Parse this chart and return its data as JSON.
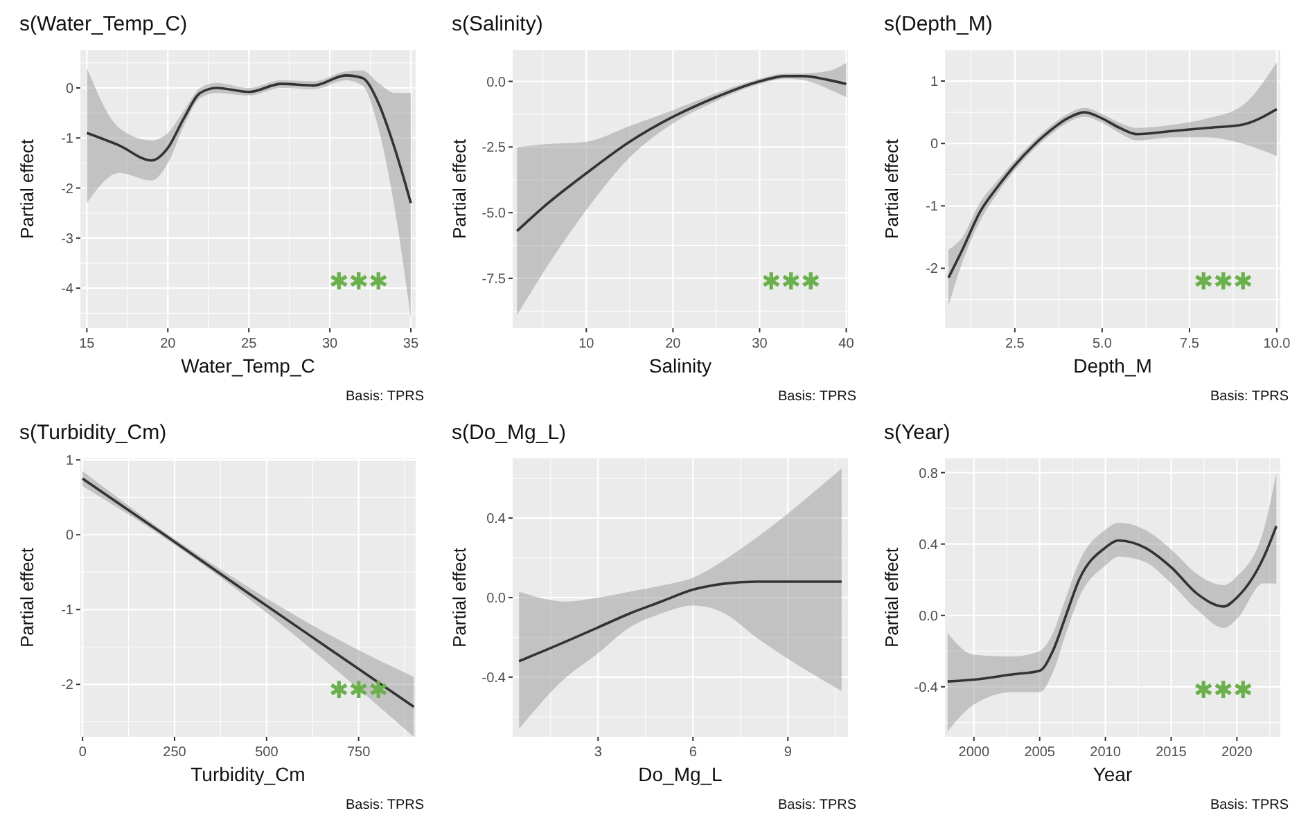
{
  "chart_data": [
    {
      "type": "line",
      "title": "s(Water_Temp_C)",
      "xlabel": "Water_Temp_C",
      "ylabel": "Partial effect",
      "annotations": [
        "✱✱✱",
        "Basis: TPRS"
      ],
      "grid": true,
      "xlim": [
        14.6,
        35.3
      ],
      "ylim": [
        -4.8,
        0.76
      ],
      "xticks": [
        15,
        20,
        25,
        30,
        35
      ],
      "yticks": [
        -4,
        -3,
        -2,
        -1,
        0
      ],
      "x": [
        15,
        17,
        19,
        20,
        21,
        22,
        23,
        25,
        27,
        29,
        31,
        32,
        33,
        34,
        35
      ],
      "series": [
        {
          "color": "#333333",
          "values": [
            -0.9,
            -1.15,
            -1.45,
            -1.2,
            -0.6,
            -0.1,
            0.0,
            -0.08,
            0.08,
            0.05,
            0.25,
            0.2,
            -0.3,
            -1.2,
            -2.3
          ],
          "lower": [
            -2.3,
            -1.7,
            -1.85,
            -1.5,
            -0.75,
            -0.2,
            -0.1,
            -0.15,
            0.0,
            -0.03,
            0.15,
            0.05,
            -0.8,
            -2.4,
            -4.6
          ],
          "upper": [
            0.4,
            -0.8,
            -1.05,
            -0.9,
            -0.45,
            0.0,
            0.1,
            0.0,
            0.15,
            0.13,
            0.33,
            0.35,
            0.1,
            -0.1,
            -0.1
          ]
        }
      ]
    },
    {
      "type": "line",
      "title": "s(Salinity)",
      "xlabel": "Salinity",
      "ylabel": "Partial effect",
      "annotations": [
        "✱✱✱",
        "Basis: TPRS"
      ],
      "grid": true,
      "xlim": [
        1.5,
        40.2
      ],
      "ylim": [
        -9.4,
        1.2
      ],
      "xticks": [
        10,
        20,
        30,
        40
      ],
      "yticks": [
        {
          "value": -7.5,
          "label": "-7.5"
        },
        {
          "value": -5,
          "label": "-5.0"
        },
        {
          "value": -2.5,
          "label": "-2.5"
        },
        {
          "value": 0,
          "label": "0.0"
        }
      ],
      "x": [
        2,
        5,
        10,
        15,
        20,
        25,
        30,
        33,
        35,
        38,
        40
      ],
      "series": [
        {
          "color": "#333333",
          "values": [
            -5.7,
            -4.8,
            -3.5,
            -2.3,
            -1.35,
            -0.6,
            0.0,
            0.2,
            0.2,
            0.05,
            -0.1
          ],
          "lower": [
            -8.9,
            -7.3,
            -4.9,
            -2.9,
            -1.6,
            -0.75,
            -0.1,
            0.1,
            0.05,
            -0.3,
            -0.6
          ],
          "upper": [
            -2.5,
            -2.4,
            -2.3,
            -1.7,
            -1.1,
            -0.45,
            0.1,
            0.3,
            0.3,
            0.4,
            0.7
          ]
        }
      ]
    },
    {
      "type": "line",
      "title": "s(Depth_M)",
      "xlabel": "Depth_M",
      "ylabel": "Partial effect",
      "annotations": [
        "✱✱✱",
        "Basis: TPRS"
      ],
      "grid": true,
      "xlim": [
        0.5,
        10.1
      ],
      "ylim": [
        -2.96,
        1.5
      ],
      "xticks": [
        2.5,
        {
          "value": 5,
          "label": "5.0"
        },
        7.5,
        {
          "value": 10,
          "label": "10.0"
        }
      ],
      "yticks": [
        -2,
        -1,
        0,
        1
      ],
      "x": [
        0.6,
        1,
        1.5,
        2,
        2.5,
        3,
        3.5,
        4,
        4.5,
        5,
        5.5,
        6,
        7,
        8,
        9,
        10
      ],
      "series": [
        {
          "color": "#333333",
          "values": [
            -2.15,
            -1.7,
            -1.1,
            -0.7,
            -0.35,
            -0.05,
            0.2,
            0.4,
            0.5,
            0.4,
            0.25,
            0.15,
            0.2,
            0.25,
            0.3,
            0.55
          ],
          "lower": [
            -2.6,
            -1.9,
            -1.25,
            -0.8,
            -0.43,
            -0.12,
            0.13,
            0.33,
            0.43,
            0.33,
            0.17,
            0.05,
            0.1,
            0.1,
            0.0,
            -0.2
          ],
          "upper": [
            -1.7,
            -1.5,
            -0.95,
            -0.6,
            -0.27,
            0.02,
            0.27,
            0.47,
            0.57,
            0.47,
            0.33,
            0.25,
            0.3,
            0.4,
            0.6,
            1.3
          ]
        }
      ]
    },
    {
      "type": "line",
      "title": "s(Turbidity_Cm)",
      "xlabel": "Turbidity_Cm",
      "ylabel": "Partial effect",
      "annotations": [
        "✱✱✱",
        "Basis: TPRS"
      ],
      "grid": true,
      "xlim": [
        -6,
        905
      ],
      "ylim": [
        -2.7,
        1.02
      ],
      "xticks": [
        0,
        250,
        500,
        750
      ],
      "yticks": [
        -2,
        -1,
        0,
        1
      ],
      "x": [
        0,
        225,
        450,
        675,
        900
      ],
      "series": [
        {
          "color": "#333333",
          "values": [
            0.75,
            -0.01,
            -0.78,
            -1.54,
            -2.3
          ],
          "lower": [
            0.65,
            -0.05,
            -0.85,
            -1.75,
            -2.7
          ],
          "upper": [
            0.85,
            0.03,
            -0.7,
            -1.35,
            -1.9
          ]
        }
      ]
    },
    {
      "type": "line",
      "title": "s(Do_Mg_L)",
      "xlabel": "Do_Mg_L",
      "ylabel": "Partial effect",
      "annotations": [
        "Basis: TPRS"
      ],
      "grid": true,
      "xlim": [
        0.3,
        10.9
      ],
      "ylim": [
        -0.7,
        0.7
      ],
      "xticks": [
        3,
        6,
        9
      ],
      "yticks": [
        -0.4,
        {
          "value": 0,
          "label": "0.0"
        },
        0.4
      ],
      "x": [
        0.5,
        2,
        3,
        4,
        5,
        6,
        7,
        8,
        10.7
      ],
      "series": [
        {
          "color": "#333333",
          "values": [
            -0.32,
            -0.22,
            -0.15,
            -0.08,
            -0.02,
            0.04,
            0.07,
            0.08,
            0.08
          ],
          "lower": [
            -0.66,
            -0.4,
            -0.28,
            -0.15,
            -0.08,
            -0.04,
            -0.08,
            -0.2,
            -0.47
          ],
          "upper": [
            0.03,
            -0.02,
            0.0,
            0.03,
            0.06,
            0.1,
            0.19,
            0.3,
            0.65
          ]
        }
      ]
    },
    {
      "type": "line",
      "title": "s(Year)",
      "xlabel": "Year",
      "ylabel": "Partial effect",
      "annotations": [
        "✱✱✱",
        "Basis: TPRS"
      ],
      "grid": true,
      "xlim": [
        1997.8,
        2023.3
      ],
      "ylim": [
        -0.68,
        0.88
      ],
      "xticks": [
        2000,
        2005,
        2010,
        2015,
        2020
      ],
      "yticks": [
        -0.4,
        {
          "value": 0,
          "label": "0.0"
        },
        0.4,
        0.8
      ],
      "x": [
        1998,
        2000,
        2003,
        2005,
        2006,
        2007,
        2008,
        2010,
        2011,
        2013,
        2015,
        2017,
        2019,
        2020,
        2022,
        2023
      ],
      "series": [
        {
          "color": "#333333",
          "values": [
            -0.37,
            -0.36,
            -0.33,
            -0.31,
            -0.2,
            0.0,
            0.2,
            0.38,
            0.42,
            0.38,
            0.27,
            0.12,
            0.05,
            0.1,
            0.32,
            0.5
          ],
          "lower": [
            -0.65,
            -0.5,
            -0.43,
            -0.43,
            -0.32,
            -0.1,
            0.1,
            0.28,
            0.33,
            0.3,
            0.18,
            0.03,
            -0.07,
            -0.02,
            0.18,
            0.18
          ],
          "upper": [
            -0.1,
            -0.22,
            -0.23,
            -0.2,
            -0.1,
            0.1,
            0.3,
            0.48,
            0.52,
            0.48,
            0.37,
            0.23,
            0.17,
            0.22,
            0.47,
            0.8
          ]
        }
      ]
    }
  ]
}
